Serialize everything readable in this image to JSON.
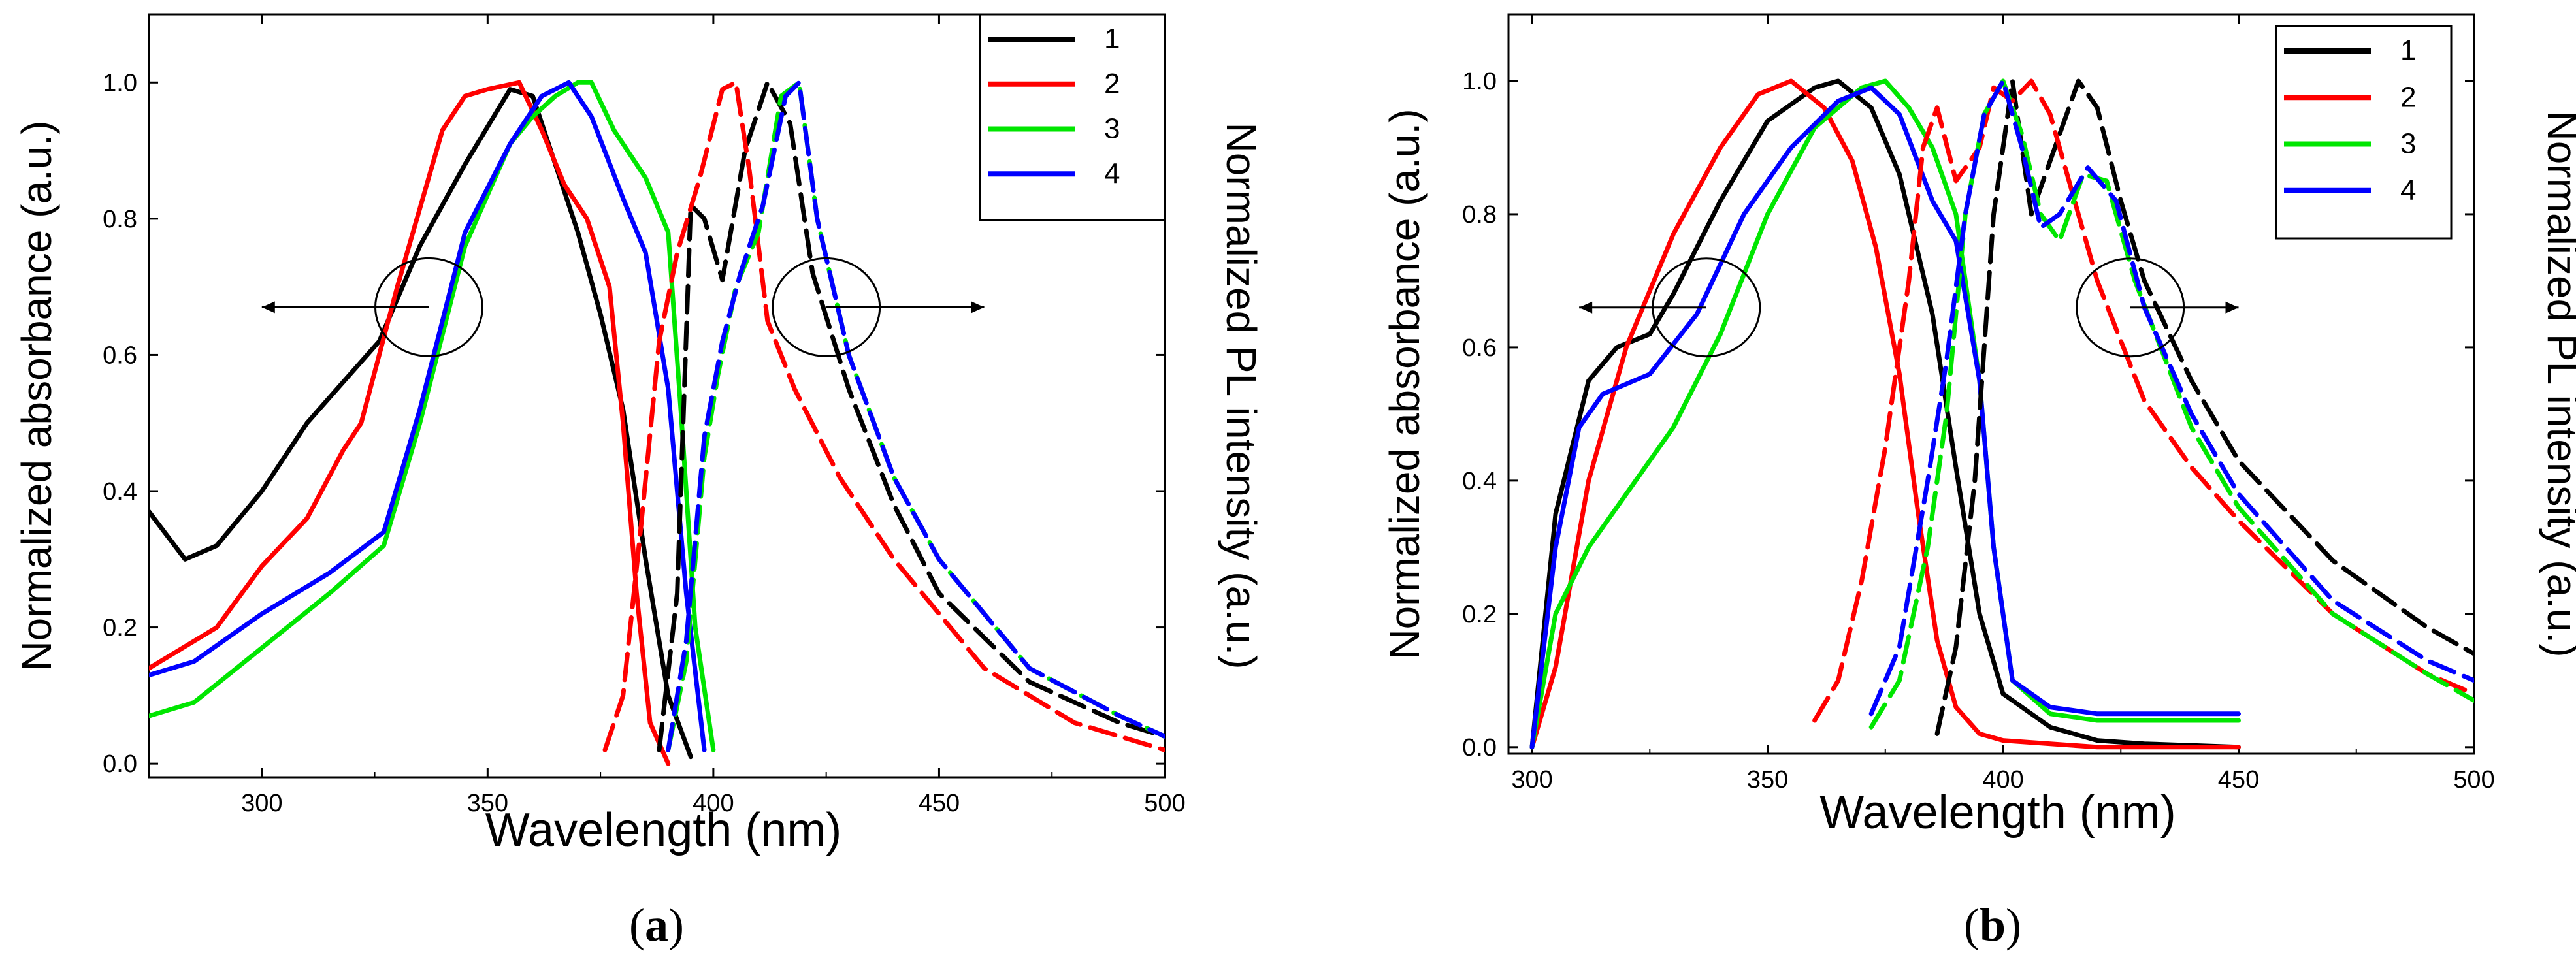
{
  "colors": {
    "1": "#000000",
    "2": "#ff0000",
    "3": "#00e600",
    "4": "#0000ff"
  },
  "chart_data": [
    {
      "type": "line",
      "panel_label": "(a)",
      "panel_letter": "a",
      "xlabel": "Wavelength (nm)",
      "ylabel_left": "Normalized absorbance (a.u.)",
      "ylabel_right": "Normalized PL intensity (a.u.)",
      "xlim": [
        275,
        500
      ],
      "ylim": [
        -0.02,
        1.1
      ],
      "xticks": [
        300,
        350,
        400,
        450,
        500
      ],
      "yticks": [
        0.0,
        0.2,
        0.4,
        0.6,
        0.8,
        1.0
      ],
      "ytick_labels": [
        "0.0",
        "0.2",
        "0.4",
        "0.6",
        "0.8",
        "1.0"
      ],
      "legend": [
        "1",
        "2",
        "3",
        "4"
      ],
      "legend_position": "top-right",
      "annotations": [
        {
          "type": "ellipse-arrow",
          "center": [
            337,
            0.67
          ],
          "arrow_to": [
            300,
            0.67
          ],
          "label": "absorbance axis: left"
        },
        {
          "type": "ellipse-arrow",
          "center": [
            425,
            0.67
          ],
          "arrow_to": [
            460,
            0.67
          ],
          "label": "PL axis: right"
        }
      ],
      "series": [
        {
          "name": "1",
          "kind": "absorbance",
          "style": "solid",
          "x": [
            275,
            283,
            290,
            300,
            310,
            318,
            326,
            335,
            345,
            355,
            360,
            365,
            370,
            375,
            380,
            385,
            390,
            395
          ],
          "y": [
            0.37,
            0.3,
            0.32,
            0.4,
            0.5,
            0.56,
            0.62,
            0.76,
            0.88,
            0.99,
            0.98,
            0.88,
            0.78,
            0.66,
            0.52,
            0.3,
            0.1,
            0.01
          ]
        },
        {
          "name": "2",
          "kind": "absorbance",
          "style": "solid",
          "x": [
            275,
            290,
            300,
            310,
            318,
            322,
            330,
            340,
            345,
            350,
            357,
            362,
            367,
            372,
            377,
            380,
            383,
            386,
            390
          ],
          "y": [
            0.14,
            0.2,
            0.29,
            0.36,
            0.46,
            0.5,
            0.7,
            0.93,
            0.98,
            0.99,
            1.0,
            0.93,
            0.85,
            0.8,
            0.7,
            0.5,
            0.25,
            0.06,
            0.0
          ]
        },
        {
          "name": "3",
          "kind": "absorbance",
          "style": "solid",
          "x": [
            275,
            285,
            300,
            315,
            327,
            335,
            345,
            355,
            360,
            365,
            370,
            373,
            378,
            385,
            390,
            393,
            396,
            400
          ],
          "y": [
            0.07,
            0.09,
            0.17,
            0.25,
            0.32,
            0.5,
            0.76,
            0.91,
            0.95,
            0.98,
            1.0,
            1.0,
            0.93,
            0.86,
            0.78,
            0.5,
            0.2,
            0.02
          ]
        },
        {
          "name": "4",
          "kind": "absorbance",
          "style": "solid",
          "x": [
            275,
            285,
            300,
            315,
            327,
            335,
            345,
            355,
            362,
            368,
            373,
            380,
            385,
            390,
            394,
            398
          ],
          "y": [
            0.13,
            0.15,
            0.22,
            0.28,
            0.34,
            0.52,
            0.78,
            0.91,
            0.98,
            1.0,
            0.95,
            0.83,
            0.75,
            0.55,
            0.25,
            0.02
          ]
        },
        {
          "name": "1",
          "kind": "PL",
          "style": "dashed",
          "x": [
            388,
            392,
            395,
            398,
            402,
            407,
            412,
            417,
            422,
            430,
            440,
            450,
            470,
            490,
            500
          ],
          "y": [
            0.02,
            0.25,
            0.82,
            0.8,
            0.71,
            0.9,
            1.0,
            0.94,
            0.72,
            0.55,
            0.38,
            0.25,
            0.12,
            0.06,
            0.04
          ]
        },
        {
          "name": "2",
          "kind": "PL",
          "style": "dashed",
          "x": [
            376,
            380,
            384,
            388,
            392,
            397,
            402,
            405,
            408,
            412,
            418,
            428,
            440,
            460,
            480,
            500
          ],
          "y": [
            0.02,
            0.1,
            0.35,
            0.62,
            0.75,
            0.86,
            0.99,
            1.0,
            0.87,
            0.65,
            0.55,
            0.42,
            0.3,
            0.14,
            0.06,
            0.02
          ]
        },
        {
          "name": "3",
          "kind": "PL",
          "style": "dashed",
          "x": [
            390,
            394,
            398,
            401,
            405,
            410,
            415,
            419,
            423,
            430,
            440,
            450,
            470,
            490,
            500
          ],
          "y": [
            0.02,
            0.15,
            0.45,
            0.57,
            0.7,
            0.78,
            0.98,
            1.0,
            0.8,
            0.6,
            0.42,
            0.3,
            0.14,
            0.07,
            0.04
          ]
        },
        {
          "name": "4",
          "kind": "PL",
          "style": "dashed",
          "x": [
            390,
            394,
            398,
            402,
            406,
            411,
            416,
            419,
            423,
            430,
            440,
            450,
            470,
            490,
            500
          ],
          "y": [
            0.02,
            0.18,
            0.48,
            0.62,
            0.72,
            0.82,
            0.98,
            1.0,
            0.8,
            0.6,
            0.42,
            0.3,
            0.14,
            0.07,
            0.04
          ]
        }
      ]
    },
    {
      "type": "line",
      "panel_label": "(b)",
      "panel_letter": "b",
      "xlabel": "Wavelength (nm)",
      "ylabel_left": "Normalized absorbance (a.u.)",
      "ylabel_right": "Normalized PL intensity (a.u.)",
      "xlim": [
        295,
        500
      ],
      "ylim": [
        -0.01,
        1.1
      ],
      "xticks": [
        300,
        350,
        400,
        450,
        500
      ],
      "yticks": [
        0.0,
        0.2,
        0.4,
        0.6,
        0.8,
        1.0
      ],
      "ytick_labels": [
        "0.0",
        "0.2",
        "0.4",
        "0.6",
        "0.8",
        "1.0"
      ],
      "legend": [
        "1",
        "2",
        "3",
        "4"
      ],
      "legend_position": "top-right",
      "annotations": [
        {
          "type": "ellipse-arrow",
          "center": [
            337,
            0.66
          ],
          "arrow_to": [
            310,
            0.66
          ],
          "label": "absorbance axis: left"
        },
        {
          "type": "ellipse-arrow",
          "center": [
            427,
            0.66
          ],
          "arrow_to": [
            450,
            0.66
          ],
          "label": "PL axis: right"
        }
      ],
      "series": [
        {
          "name": "1",
          "kind": "absorbance",
          "style": "solid",
          "x": [
            300,
            305,
            312,
            318,
            325,
            330,
            340,
            350,
            360,
            365,
            372,
            378,
            385,
            390,
            395,
            400,
            410,
            420,
            430,
            450
          ],
          "y": [
            0.0,
            0.35,
            0.55,
            0.6,
            0.62,
            0.68,
            0.82,
            0.94,
            0.99,
            1.0,
            0.96,
            0.86,
            0.65,
            0.42,
            0.2,
            0.08,
            0.03,
            0.01,
            0.005,
            0.0
          ]
        },
        {
          "name": "2",
          "kind": "absorbance",
          "style": "solid",
          "x": [
            300,
            305,
            312,
            320,
            330,
            340,
            348,
            355,
            362,
            368,
            373,
            378,
            382,
            386,
            390,
            395,
            400,
            420,
            450
          ],
          "y": [
            0.0,
            0.12,
            0.4,
            0.6,
            0.77,
            0.9,
            0.98,
            1.0,
            0.96,
            0.88,
            0.75,
            0.56,
            0.35,
            0.16,
            0.06,
            0.02,
            0.01,
            0.0,
            0.0
          ]
        },
        {
          "name": "3",
          "kind": "absorbance",
          "style": "solid",
          "x": [
            300,
            305,
            312,
            320,
            330,
            340,
            350,
            360,
            370,
            375,
            380,
            385,
            390,
            395,
            398,
            402,
            410,
            420,
            450
          ],
          "y": [
            0.0,
            0.2,
            0.3,
            0.38,
            0.48,
            0.62,
            0.8,
            0.93,
            0.99,
            1.0,
            0.96,
            0.9,
            0.8,
            0.55,
            0.3,
            0.1,
            0.05,
            0.04,
            0.04
          ]
        },
        {
          "name": "4",
          "kind": "absorbance",
          "style": "solid",
          "x": [
            300,
            305,
            310,
            315,
            325,
            335,
            345,
            355,
            365,
            372,
            378,
            385,
            390,
            395,
            398,
            402,
            410,
            420,
            450
          ],
          "y": [
            0.0,
            0.3,
            0.48,
            0.53,
            0.56,
            0.65,
            0.8,
            0.9,
            0.97,
            0.99,
            0.95,
            0.82,
            0.76,
            0.55,
            0.3,
            0.1,
            0.06,
            0.05,
            0.05
          ]
        },
        {
          "name": "1",
          "kind": "PL",
          "style": "dashed",
          "x": [
            386,
            390,
            394,
            398,
            402,
            406,
            411,
            416,
            420,
            425,
            430,
            440,
            450,
            470,
            490,
            500
          ],
          "y": [
            0.02,
            0.15,
            0.4,
            0.8,
            1.0,
            0.8,
            0.9,
            1.0,
            0.96,
            0.82,
            0.7,
            0.55,
            0.43,
            0.28,
            0.18,
            0.14
          ]
        },
        {
          "name": "2",
          "kind": "PL",
          "style": "dashed",
          "x": [
            360,
            365,
            370,
            375,
            380,
            383,
            386,
            390,
            395,
            398,
            402,
            406,
            410,
            420,
            430,
            440,
            450,
            470,
            490,
            500
          ],
          "y": [
            0.04,
            0.1,
            0.25,
            0.45,
            0.7,
            0.9,
            0.96,
            0.85,
            0.9,
            0.99,
            0.97,
            1.0,
            0.95,
            0.7,
            0.52,
            0.42,
            0.34,
            0.2,
            0.11,
            0.08
          ]
        },
        {
          "name": "3",
          "kind": "PL",
          "style": "dashed",
          "x": [
            372,
            378,
            384,
            388,
            392,
            396,
            400,
            404,
            408,
            412,
            417,
            422,
            428,
            440,
            450,
            470,
            490,
            500
          ],
          "y": [
            0.03,
            0.1,
            0.3,
            0.5,
            0.8,
            0.95,
            1.0,
            0.92,
            0.8,
            0.76,
            0.86,
            0.85,
            0.7,
            0.48,
            0.36,
            0.2,
            0.11,
            0.07
          ]
        },
        {
          "name": "4",
          "kind": "PL",
          "style": "dashed",
          "x": [
            372,
            378,
            384,
            388,
            392,
            396,
            400,
            404,
            408,
            412,
            418,
            424,
            430,
            440,
            450,
            470,
            490,
            500
          ],
          "y": [
            0.05,
            0.15,
            0.4,
            0.58,
            0.8,
            0.95,
            1.0,
            0.9,
            0.78,
            0.8,
            0.87,
            0.82,
            0.66,
            0.5,
            0.38,
            0.22,
            0.13,
            0.1
          ]
        }
      ]
    }
  ]
}
